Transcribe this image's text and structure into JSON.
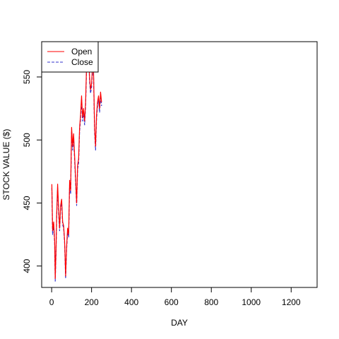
{
  "chart_data": {
    "type": "line",
    "title": "",
    "xlabel": "DAY",
    "ylabel": "STOCK VALUE ($)",
    "xlim": [
      -50,
      1330
    ],
    "ylim": [
      383,
      578
    ],
    "x_ticks": [
      0,
      200,
      400,
      600,
      800,
      1000,
      1200
    ],
    "y_ticks": [
      400,
      450,
      500,
      550
    ],
    "grid": false,
    "legend": {
      "position": "top-left"
    },
    "series": [
      {
        "name": "Open",
        "color": "#ff0000",
        "dash": "solid",
        "x": [
          1,
          5,
          10,
          15,
          18,
          22,
          25,
          30,
          35,
          40,
          45,
          50,
          55,
          60,
          65,
          70,
          75,
          80,
          85,
          90,
          95,
          100,
          105,
          110,
          115,
          120,
          125,
          130,
          135,
          140,
          145,
          150,
          155,
          160,
          165,
          170,
          175,
          180,
          185,
          190,
          195,
          200,
          205,
          210,
          215,
          220,
          225,
          230,
          235,
          240,
          245,
          250
        ],
        "values": [
          465,
          428,
          435,
          420,
          390,
          412,
          440,
          465,
          445,
          430,
          448,
          453,
          435,
          432,
          420,
          392,
          415,
          430,
          425,
          468,
          460,
          510,
          495,
          505,
          488,
          470,
          450,
          480,
          485,
          510,
          520,
          535,
          518,
          525,
          515,
          530,
          560,
          575,
          572,
          550,
          540,
          545,
          560,
          553,
          510,
          495,
          520,
          530,
          535,
          525,
          538,
          530
        ]
      },
      {
        "name": "Close",
        "color": "#3333cc",
        "dash": "dashed",
        "x": [
          1,
          5,
          10,
          15,
          18,
          22,
          25,
          30,
          35,
          40,
          45,
          50,
          55,
          60,
          65,
          70,
          75,
          80,
          85,
          90,
          95,
          100,
          105,
          110,
          115,
          120,
          125,
          130,
          135,
          140,
          145,
          150,
          155,
          160,
          165,
          170,
          175,
          180,
          185,
          190,
          195,
          200,
          205,
          210,
          215,
          220,
          225,
          230,
          235,
          240,
          245,
          250
        ],
        "values": [
          462,
          425,
          432,
          418,
          388,
          410,
          438,
          462,
          442,
          428,
          446,
          450,
          433,
          430,
          418,
          390,
          413,
          427,
          423,
          465,
          457,
          507,
          492,
          502,
          485,
          467,
          448,
          477,
          482,
          507,
          517,
          532,
          515,
          522,
          512,
          527,
          557,
          572,
          569,
          547,
          537,
          542,
          557,
          550,
          507,
          492,
          517,
          527,
          532,
          522,
          535,
          527
        ]
      }
    ]
  }
}
